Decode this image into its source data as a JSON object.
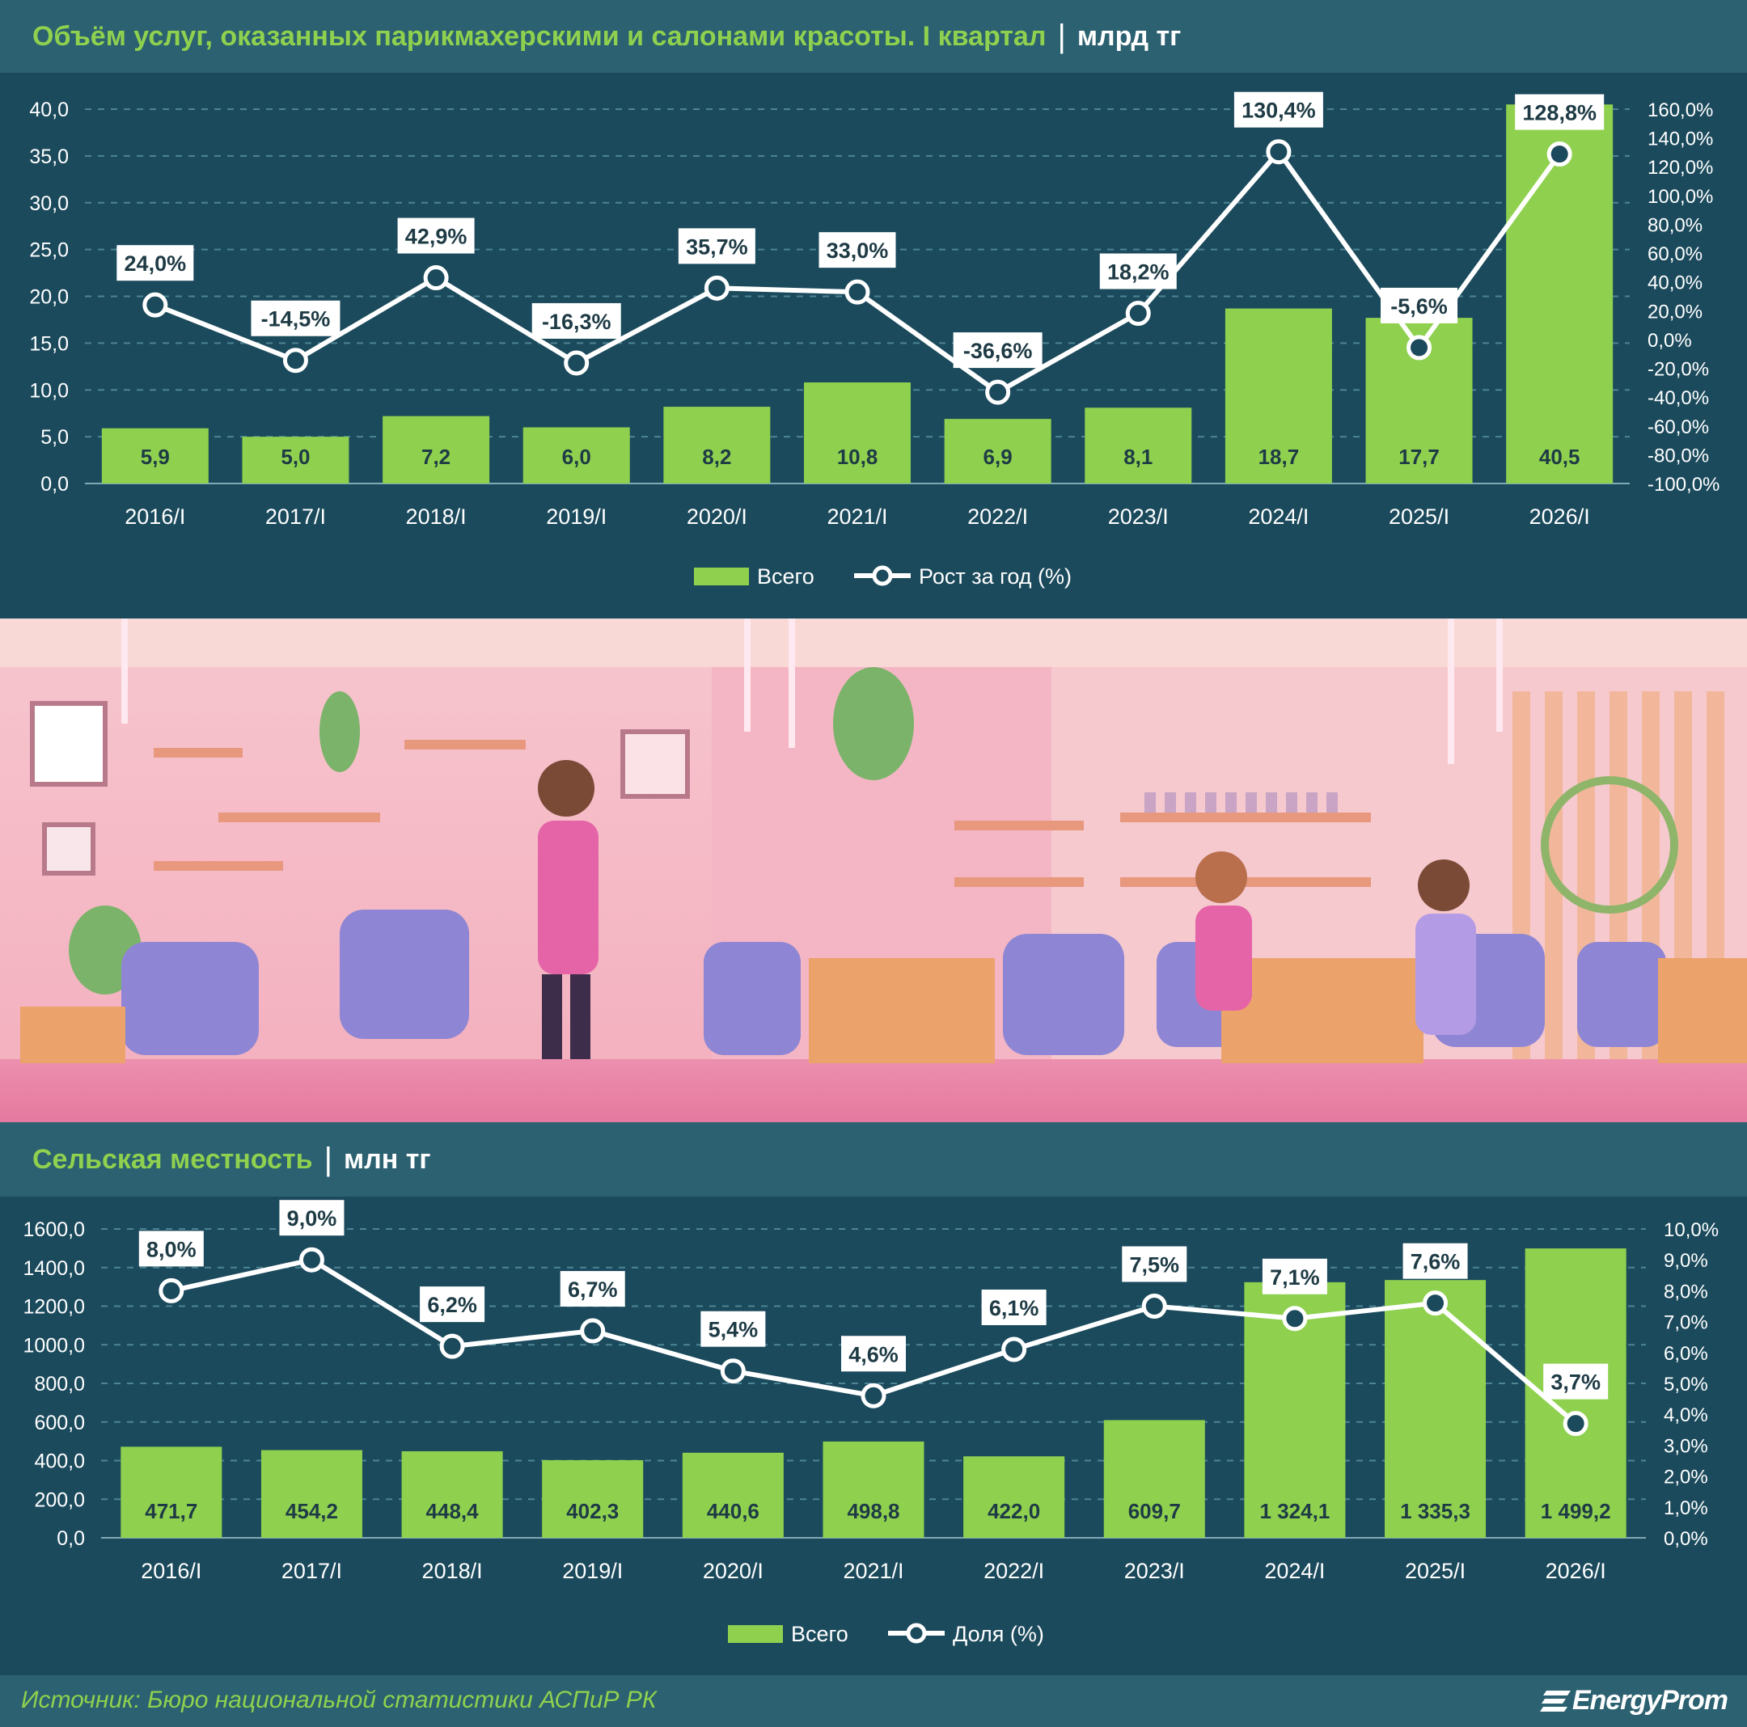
{
  "chart1": {
    "title": "Объём услуг, оказанных парикмахерскими и салонами красоты. I квартал",
    "unit": "млрд тг",
    "legend": {
      "bars": "Всего",
      "line": "Рост за год (%)"
    }
  },
  "chart2": {
    "title": "Сельская местность",
    "unit": "млн тг",
    "legend": {
      "bars": "Всего",
      "line": "Доля (%)"
    }
  },
  "footer": {
    "source": "Источник: Бюро национальной статистики АСПиР РК",
    "logo": "EnergyProm"
  },
  "colors": {
    "bar": "#8fd14f",
    "line": "#ffffff",
    "background": "#1b4a5c",
    "band": "#2b6170",
    "accent_text": "#8fd14f"
  },
  "chart_data": [
    {
      "type": "bar",
      "title": "Объём услуг, оказанных парикмахерскими и салонами красоты. I квартал",
      "categories": [
        "2016/I",
        "2017/I",
        "2018/I",
        "2019/I",
        "2020/I",
        "2021/I",
        "2022/I",
        "2023/I",
        "2024/I",
        "2025/I",
        "2026/I"
      ],
      "series": [
        {
          "name": "Всего",
          "type": "bar",
          "axis": "left",
          "values": [
            5.9,
            5.0,
            7.2,
            6.0,
            8.2,
            10.8,
            6.9,
            8.1,
            18.7,
            17.7,
            40.5
          ],
          "labels": [
            "5,9",
            "5,0",
            "7,2",
            "6,0",
            "8,2",
            "10,8",
            "6,9",
            "8,1",
            "18,7",
            "17,7",
            "40,5"
          ]
        },
        {
          "name": "Рост за год (%)",
          "type": "line",
          "axis": "right",
          "values": [
            24.0,
            -14.5,
            42.9,
            -16.3,
            35.7,
            33.0,
            -36.6,
            18.2,
            130.4,
            -5.6,
            128.8
          ],
          "labels": [
            "24,0%",
            "-14,5%",
            "42,9%",
            "-16,3%",
            "35,7%",
            "33,0%",
            "-36,6%",
            "18,2%",
            "130,4%",
            "-5,6%",
            "128,8%"
          ]
        }
      ],
      "ylim": [
        0,
        40
      ],
      "ylim_right": [
        -100,
        160
      ],
      "yticks_left": [
        "0,0",
        "5,0",
        "10,0",
        "15,0",
        "20,0",
        "25,0",
        "30,0",
        "35,0",
        "40,0"
      ],
      "yticks_right": [
        "-100,0%",
        "-80,0%",
        "-60,0%",
        "-40,0%",
        "-20,0%",
        "0,0%",
        "20,0%",
        "40,0%",
        "60,0%",
        "80,0%",
        "100,0%",
        "120,0%",
        "140,0%",
        "160,0%"
      ],
      "grid": true,
      "legend_position": "bottom"
    },
    {
      "type": "bar",
      "title": "Сельская местность",
      "categories": [
        "2016/I",
        "2017/I",
        "2018/I",
        "2019/I",
        "2020/I",
        "2021/I",
        "2022/I",
        "2023/I",
        "2024/I",
        "2025/I",
        "2026/I"
      ],
      "series": [
        {
          "name": "Всего",
          "type": "bar",
          "axis": "left",
          "values": [
            471.7,
            454.2,
            448.4,
            402.3,
            440.6,
            498.8,
            422.0,
            609.7,
            1324.1,
            1335.3,
            1499.2
          ],
          "labels": [
            "471,7",
            "454,2",
            "448,4",
            "402,3",
            "440,6",
            "498,8",
            "422,0",
            "609,7",
            "1 324,1",
            "1 335,3",
            "1 499,2"
          ]
        },
        {
          "name": "Доля (%)",
          "type": "line",
          "axis": "right",
          "values": [
            8.0,
            9.0,
            6.2,
            6.7,
            5.4,
            4.6,
            6.1,
            7.5,
            7.1,
            7.6,
            3.7
          ],
          "labels": [
            "8,0%",
            "9,0%",
            "6,2%",
            "6,7%",
            "5,4%",
            "4,6%",
            "6,1%",
            "7,5%",
            "7,1%",
            "7,6%",
            "3,7%"
          ]
        }
      ],
      "ylim": [
        0,
        1600
      ],
      "ylim_right": [
        0,
        10
      ],
      "yticks_left": [
        "0,0",
        "200,0",
        "400,0",
        "600,0",
        "800,0",
        "1000,0",
        "1200,0",
        "1400,0",
        "1600,0"
      ],
      "yticks_right": [
        "0,0%",
        "1,0%",
        "2,0%",
        "3,0%",
        "4,0%",
        "5,0%",
        "6,0%",
        "7,0%",
        "8,0%",
        "9,0%",
        "10,0%"
      ],
      "grid": true,
      "legend_position": "bottom"
    }
  ]
}
